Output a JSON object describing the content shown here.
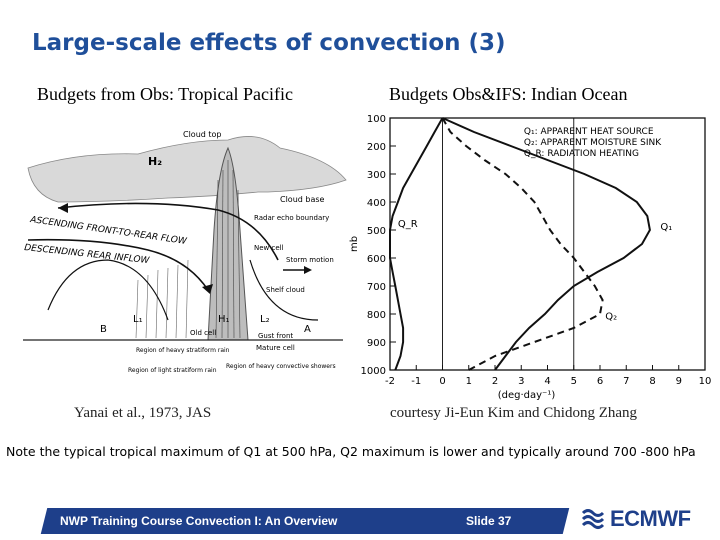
{
  "slide": {
    "title": "Large-scale effects of convection (3)",
    "left_heading": "Budgets from Obs: Tropical Pacific",
    "right_heading": "Budgets Obs&IFS: Indian Ocean",
    "left_caption": "Yanai et al., 1973, JAS",
    "right_caption": "courtesy Ji-Eun Kim and Chidong Zhang",
    "note": "Note the typical tropical maximum of Q1 at 500 hPa, Q2 maximum is lower and typically around 700 -800 hPa"
  },
  "diagram": {
    "labels": {
      "cloud_top": "Cloud top",
      "h2": "H₂",
      "cloud_base": "Cloud base",
      "front_to_rear": "ASCENDING FRONT-TO-REAR FLOW",
      "rear_inflow": "DESCENDING REAR INFLOW",
      "radar_echo": "Radar echo boundary",
      "new_cell": "New cell",
      "storm_motion": "Storm motion",
      "shelf_cloud": "Shelf cloud",
      "b": "B",
      "l1": "L₁",
      "h1": "H₁",
      "l2": "L₂",
      "a": "A",
      "old_cell": "Old cell",
      "gust_front": "Gust front",
      "mature_cell": "Mature cell",
      "heavy_stratiform": "Region of heavy stratiform rain",
      "light_stratiform": "Region of light stratiform rain",
      "heavy_convective": "Region of heavy convective showers"
    }
  },
  "chart_data": {
    "type": "line",
    "ylabel": "mb",
    "xlabel": "(deg·day⁻¹)",
    "x_ticks": [
      "-2",
      "-1",
      "0",
      "1",
      "2",
      "3",
      "4",
      "5",
      "6",
      "7",
      "8",
      "9",
      "10"
    ],
    "y_ticks": [
      "100",
      "200",
      "300",
      "400",
      "500",
      "600",
      "700",
      "800",
      "900",
      "1000"
    ],
    "xlim": [
      -2,
      10
    ],
    "ylim": [
      1000,
      100
    ],
    "legend": [
      "Q₁: APPARENT HEAT SOURCE",
      "Q₂: APPARENT MOISTURE SINK",
      "Q_R: RADIATION HEATING"
    ],
    "reference_lines_x": [
      0,
      5
    ],
    "series": [
      {
        "name": "Q₁",
        "style": "solid",
        "y": [
          100,
          150,
          200,
          250,
          300,
          350,
          400,
          450,
          500,
          550,
          600,
          650,
          700,
          750,
          800,
          850,
          900,
          950,
          1000
        ],
        "values": [
          0.0,
          1.2,
          2.6,
          4.0,
          5.4,
          6.6,
          7.4,
          7.8,
          7.9,
          7.6,
          6.9,
          5.9,
          5.0,
          4.4,
          3.9,
          3.3,
          2.8,
          2.4,
          2.0
        ]
      },
      {
        "name": "Q₂",
        "style": "dashed",
        "y": [
          100,
          150,
          200,
          250,
          300,
          350,
          400,
          450,
          500,
          550,
          600,
          650,
          700,
          750,
          800,
          850,
          900,
          950,
          1000
        ],
        "values": [
          0.0,
          0.3,
          0.9,
          1.6,
          2.4,
          3.0,
          3.5,
          3.8,
          4.1,
          4.5,
          5.0,
          5.4,
          5.8,
          6.1,
          6.0,
          5.0,
          3.5,
          2.0,
          1.0
        ]
      },
      {
        "name": "Q_R",
        "style": "solid",
        "y": [
          100,
          150,
          200,
          250,
          300,
          350,
          400,
          450,
          500,
          550,
          600,
          650,
          700,
          750,
          800,
          850,
          900,
          950,
          1000
        ],
        "values": [
          0.0,
          -0.3,
          -0.6,
          -0.9,
          -1.2,
          -1.5,
          -1.7,
          -1.9,
          -2.0,
          -2.0,
          -2.0,
          -1.9,
          -1.8,
          -1.7,
          -1.6,
          -1.5,
          -1.5,
          -1.6,
          -1.8
        ]
      }
    ]
  },
  "footer": {
    "course": "NWP Training Course Convection I: An Overview",
    "slide_number": "Slide 37",
    "logo_text": "ECMWF"
  },
  "colors": {
    "title": "#1f4f9a",
    "footer_bar": "#1e3f8a",
    "logo": "#1e3f8a"
  }
}
